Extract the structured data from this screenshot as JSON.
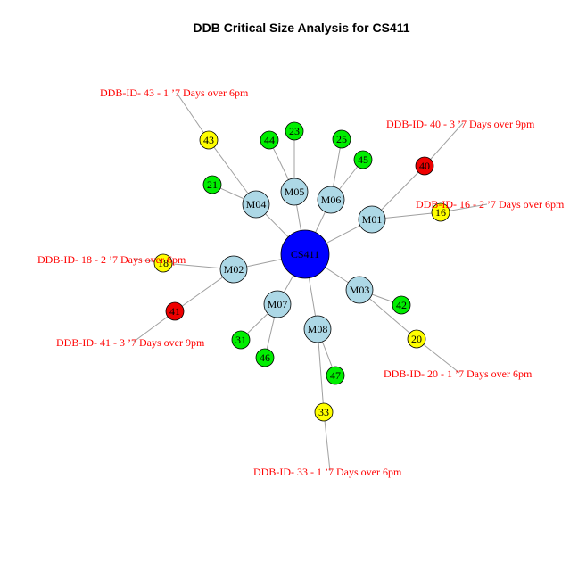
{
  "title": "DDB Critical Size Analysis for  CS411",
  "colors": {
    "hub": "#0000ff",
    "module": "#add8e6",
    "green": "#00ee00",
    "yellow": "#ffff00",
    "red": "#ee0000",
    "annotation_text": "#ff0000",
    "edge": "#a0a0a0"
  },
  "nodes": [
    {
      "id": "CS411",
      "label": "CS411",
      "type": "hub",
      "color": "hub"
    },
    {
      "id": "M01",
      "label": "M01",
      "type": "module",
      "color": "module"
    },
    {
      "id": "M02",
      "label": "M02",
      "type": "module",
      "color": "module"
    },
    {
      "id": "M03",
      "label": "M03",
      "type": "module",
      "color": "module"
    },
    {
      "id": "M04",
      "label": "M04",
      "type": "module",
      "color": "module"
    },
    {
      "id": "M05",
      "label": "M05",
      "type": "module",
      "color": "module"
    },
    {
      "id": "M06",
      "label": "M06",
      "type": "module",
      "color": "module"
    },
    {
      "id": "M07",
      "label": "M07",
      "type": "module",
      "color": "module"
    },
    {
      "id": "M08",
      "label": "M08",
      "type": "module",
      "color": "module"
    },
    {
      "id": "16",
      "label": "16",
      "type": "ddb",
      "color": "yellow"
    },
    {
      "id": "40",
      "label": "40",
      "type": "ddb",
      "color": "red"
    },
    {
      "id": "18",
      "label": "18",
      "type": "ddb",
      "color": "yellow"
    },
    {
      "id": "41",
      "label": "41",
      "type": "ddb",
      "color": "red"
    },
    {
      "id": "42",
      "label": "42",
      "type": "ddb",
      "color": "green"
    },
    {
      "id": "20",
      "label": "20",
      "type": "ddb",
      "color": "yellow"
    },
    {
      "id": "21",
      "label": "21",
      "type": "ddb",
      "color": "green"
    },
    {
      "id": "43",
      "label": "43",
      "type": "ddb",
      "color": "yellow"
    },
    {
      "id": "44",
      "label": "44",
      "type": "ddb",
      "color": "green"
    },
    {
      "id": "23",
      "label": "23",
      "type": "ddb",
      "color": "green"
    },
    {
      "id": "25",
      "label": "25",
      "type": "ddb",
      "color": "green"
    },
    {
      "id": "45",
      "label": "45",
      "type": "ddb",
      "color": "green"
    },
    {
      "id": "31",
      "label": "31",
      "type": "ddb",
      "color": "green"
    },
    {
      "id": "46",
      "label": "46",
      "type": "ddb",
      "color": "green"
    },
    {
      "id": "47",
      "label": "47",
      "type": "ddb",
      "color": "green"
    },
    {
      "id": "33",
      "label": "33",
      "type": "ddb",
      "color": "yellow"
    }
  ],
  "edges": [
    [
      "CS411",
      "M01"
    ],
    [
      "CS411",
      "M02"
    ],
    [
      "CS411",
      "M03"
    ],
    [
      "CS411",
      "M04"
    ],
    [
      "CS411",
      "M05"
    ],
    [
      "CS411",
      "M06"
    ],
    [
      "CS411",
      "M07"
    ],
    [
      "CS411",
      "M08"
    ],
    [
      "M01",
      "16"
    ],
    [
      "M01",
      "40"
    ],
    [
      "M02",
      "18"
    ],
    [
      "M02",
      "41"
    ],
    [
      "M03",
      "42"
    ],
    [
      "M03",
      "20"
    ],
    [
      "M04",
      "21"
    ],
    [
      "M04",
      "43"
    ],
    [
      "M05",
      "44"
    ],
    [
      "M05",
      "23"
    ],
    [
      "M06",
      "25"
    ],
    [
      "M06",
      "45"
    ],
    [
      "M07",
      "31"
    ],
    [
      "M07",
      "46"
    ],
    [
      "M08",
      "47"
    ],
    [
      "M08",
      "33"
    ]
  ],
  "annotations": [
    {
      "node": "43",
      "text": "DDB-ID- 43 - 1 ’7 Days over 6pm"
    },
    {
      "node": "40",
      "text": "DDB-ID- 40 - 3 ’7 Days over 9pm"
    },
    {
      "node": "16",
      "text": "DDB-ID- 16 - 2 ’7 Days over 6pm"
    },
    {
      "node": "18",
      "text": "DDB-ID- 18 - 2 ’7 Days over 6pm"
    },
    {
      "node": "41",
      "text": "DDB-ID- 41 - 3 ’7 Days over 9pm"
    },
    {
      "node": "20",
      "text": "DDB-ID- 20 - 1 ’7 Days over 6pm"
    },
    {
      "node": "33",
      "text": "DDB-ID- 33 - 1 ’7 Days over 6pm"
    }
  ]
}
